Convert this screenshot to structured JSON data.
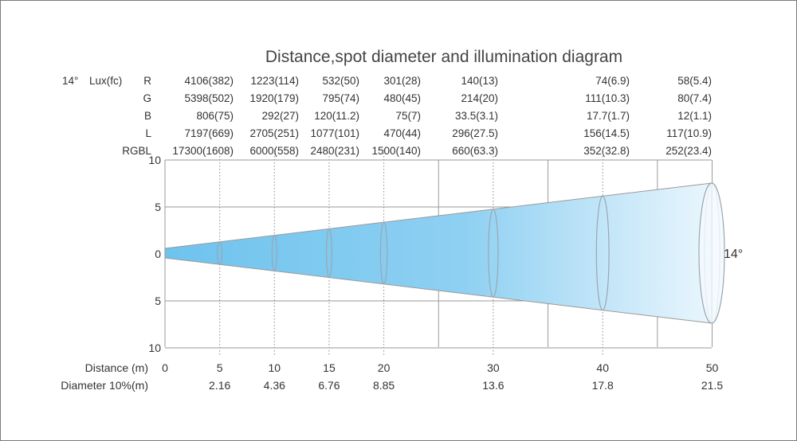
{
  "title": "Distance,spot diameter and illumination diagram",
  "beam_label": "14°",
  "lux_header": {
    "angle": "14°",
    "unit": "Lux(fc)"
  },
  "rows": [
    {
      "label": "R",
      "values": [
        "4106(382)",
        "1223(114)",
        "532(50)",
        "301(28)",
        "140(13)",
        "74(6.9)",
        "58(5.4)"
      ]
    },
    {
      "label": "G",
      "values": [
        "5398(502)",
        "1920(179)",
        "795(74)",
        "480(45)",
        "214(20)",
        "111(10.3)",
        "80(7.4)"
      ]
    },
    {
      "label": "B",
      "values": [
        "806(75)",
        "292(27)",
        "120(11.2)",
        "75(7)",
        "33.5(3.1)",
        "17.7(1.7)",
        "12(1.1)"
      ]
    },
    {
      "label": "L",
      "values": [
        "7197(669)",
        "2705(251)",
        "1077(101)",
        "470(44)",
        "296(27.5)",
        "156(14.5)",
        "117(10.9)"
      ]
    },
    {
      "label": "RGBL",
      "values": [
        "17300(1608)",
        "6000(558)",
        "2480(231)",
        "1500(140)",
        "660(63.3)",
        "352(32.8)",
        "252(23.4)"
      ]
    }
  ],
  "y_ticks": [
    "10",
    "5",
    "0",
    "5",
    "10"
  ],
  "distance": {
    "label": "Distance  (m)",
    "values": [
      "0",
      "5",
      "10",
      "15",
      "20",
      "30",
      "40",
      "50"
    ]
  },
  "diameter": {
    "label": "Diameter  10%(m)",
    "values": [
      "2.16",
      "4.36",
      "6.76",
      "8.85",
      "13.6",
      "17.8",
      "21.5"
    ]
  },
  "colors": {
    "beam_start": "#6ec3ee",
    "beam_end": "#e8f5fd",
    "line": "#9a9a9a",
    "text": "#333333"
  }
}
